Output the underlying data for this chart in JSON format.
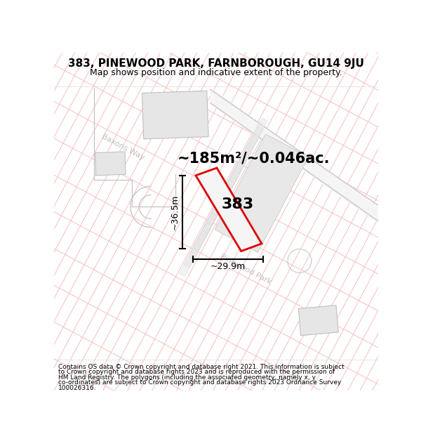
{
  "title_line1": "383, PINEWOOD PARK, FARNBOROUGH, GU14 9JU",
  "title_line2": "Map shows position and indicative extent of the property.",
  "area_text": "~185m²/~0.046ac.",
  "plot_number": "383",
  "dim_vertical": "~36.5m",
  "dim_horizontal": "~29.9m",
  "street1": "Baxons Way",
  "street2": "Pinewood Park",
  "footer_lines": [
    "Contains OS data © Crown copyright and database right 2021. This information is subject",
    "to Crown copyright and database rights 2023 and is reproduced with the permission of",
    "HM Land Registry. The polygons (including the associated geometry, namely x, y",
    "co-ordinates) are subject to Crown copyright and database rights 2023 Ordnance Survey",
    "100026316."
  ],
  "bg_color": "#ffffff",
  "pink_line_color": "#f5c0c0",
  "gray_line_color": "#c8c8c8",
  "building_fill": "#e6e6e6",
  "building_edge": "#c0c0c0",
  "plot_red": "#dd0000",
  "plot_gray_fill": "#e8e8e8",
  "hatch_gray": "#e0e0e0",
  "street_color": "#cccccc",
  "title_fontsize": 11,
  "subtitle_fontsize": 9,
  "area_fontsize": 15,
  "plotnum_fontsize": 16,
  "dim_fontsize": 9,
  "footer_fontsize": 6.5
}
